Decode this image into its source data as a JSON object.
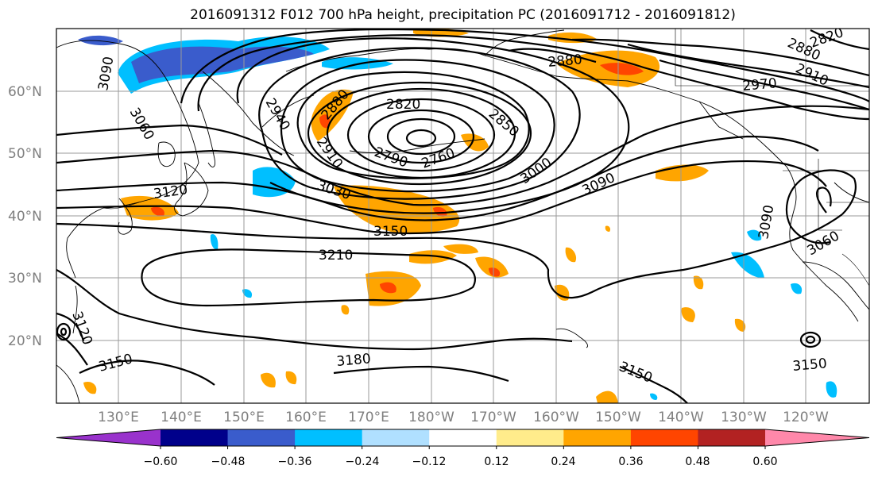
{
  "title": "2016091312 F012 700 hPa height, precipitation PC (2016091712 - 2016091812)",
  "lat_labels": [
    "60°N",
    "50°N",
    "40°N",
    "30°N",
    "20°N"
  ],
  "lon_labels": [
    "130°E",
    "140°E",
    "150°E",
    "160°E",
    "170°E",
    "180°W",
    "170°W",
    "160°W",
    "150°W",
    "140°W",
    "130°W",
    "120°W"
  ],
  "contour_labels": [
    "3090",
    "3060",
    "2940",
    "2880",
    "2910",
    "2820",
    "2790",
    "2760",
    "2850",
    "3000",
    "3030",
    "3120",
    "3150",
    "3210",
    "3090",
    "2880",
    "2970",
    "2910",
    "2820",
    "2880",
    "3090",
    "3060",
    "3120",
    "3150",
    "3180",
    "3150",
    "3150"
  ],
  "colorbar": {
    "ticks": [
      "−0.60",
      "−0.48",
      "−0.36",
      "−0.24",
      "−0.12",
      "0.12",
      "0.24",
      "0.36",
      "0.48",
      "0.60"
    ],
    "colors": [
      "#9932cc",
      "#00008b",
      "#3a5ccc",
      "#00bfff",
      "#b0e0ff",
      "#ffffff",
      "#ffec8b",
      "#ffa500",
      "#ff4500",
      "#b22222",
      "#ff88aa"
    ]
  }
}
